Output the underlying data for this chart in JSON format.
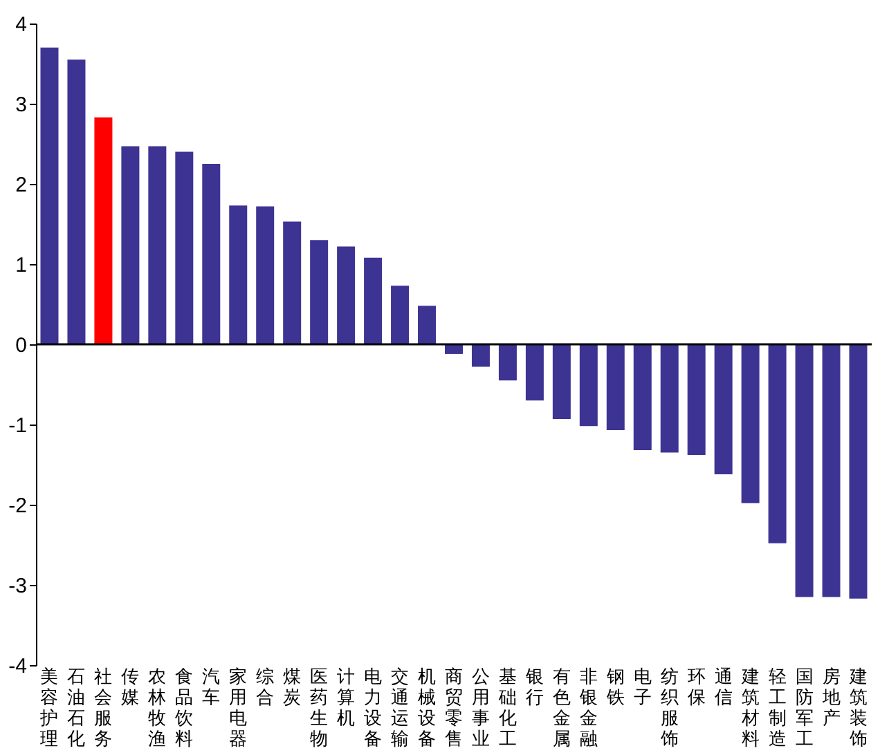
{
  "chart_data": {
    "type": "bar",
    "categories": [
      "美容护理",
      "石油石化",
      "社会服务",
      "传媒",
      "农林牧渔",
      "食品饮料",
      "汽车",
      "家用电器",
      "综合",
      "煤炭",
      "医药生物",
      "计算机",
      "电力设备",
      "交通运输",
      "机械设备",
      "商贸零售",
      "公用事业",
      "基础化工",
      "银行",
      "有色金属",
      "非银金融",
      "钢铁",
      "电子",
      "纺织服饰",
      "环保",
      "通信",
      "建筑材料",
      "轻工制造",
      "国防军工",
      "房地产",
      "建筑装饰"
    ],
    "values": [
      3.7,
      3.55,
      2.83,
      2.47,
      2.47,
      2.4,
      2.25,
      1.73,
      1.72,
      1.53,
      1.3,
      1.22,
      1.08,
      0.73,
      0.48,
      -0.12,
      -0.28,
      -0.45,
      -0.7,
      -0.93,
      -1.02,
      -1.07,
      -1.32,
      -1.35,
      -1.38,
      -1.62,
      -1.98,
      -2.48,
      -3.15,
      -3.15,
      -3.17
    ],
    "colors": [
      "#3d3393",
      "#3d3393",
      "#ff0000",
      "#3d3393",
      "#3d3393",
      "#3d3393",
      "#3d3393",
      "#3d3393",
      "#3d3393",
      "#3d3393",
      "#3d3393",
      "#3d3393",
      "#3d3393",
      "#3d3393",
      "#3d3393",
      "#3d3393",
      "#3d3393",
      "#3d3393",
      "#3d3393",
      "#3d3393",
      "#3d3393",
      "#3d3393",
      "#3d3393",
      "#3d3393",
      "#3d3393",
      "#3d3393",
      "#3d3393",
      "#3d3393",
      "#3d3393",
      "#3d3393",
      "#3d3393"
    ],
    "ylim": [
      -4,
      4
    ],
    "yticks": [
      -4,
      -3,
      -2,
      -1,
      0,
      1,
      2,
      3,
      4
    ]
  }
}
